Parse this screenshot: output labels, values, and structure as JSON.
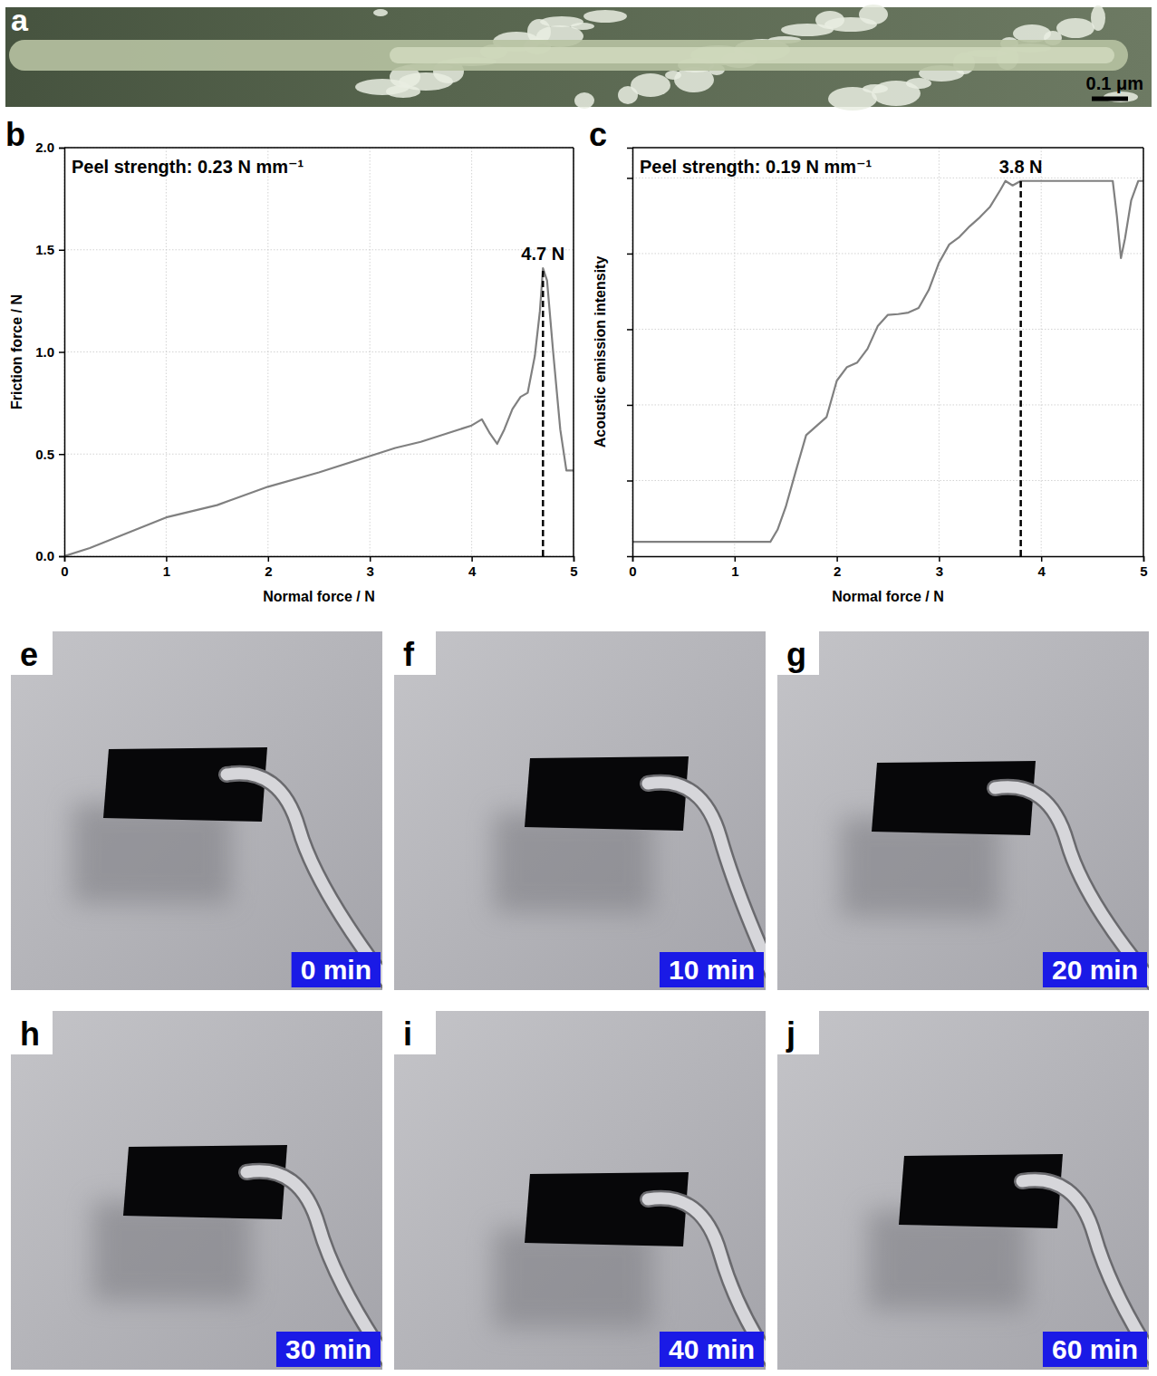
{
  "micrograph": {
    "letter": "a",
    "scale_bar": "0.1 μm"
  },
  "chart_letters": [
    "b",
    "c"
  ],
  "chart_data": [
    {
      "type": "line",
      "x_label": "Normal force / N",
      "y_label": "Friction force / N",
      "annotations": [
        {
          "text": "Peel strength: 0.23 N mm⁻¹"
        },
        {
          "text": "4.7 N",
          "x": 4.7,
          "y": 1.41
        }
      ],
      "x": [
        0,
        0.25,
        0.5,
        0.75,
        1,
        1.5,
        2,
        2.5,
        3,
        3.25,
        3.5,
        3.75,
        4,
        4.1,
        4.18,
        4.25,
        4.32,
        4.4,
        4.48,
        4.55,
        4.62,
        4.67,
        4.7,
        4.74,
        4.8,
        4.87,
        4.93,
        5
      ],
      "series": [
        {
          "color": "#808080",
          "values": [
            0,
            0.04,
            0.09,
            0.14,
            0.19,
            0.25,
            0.34,
            0.41,
            0.49,
            0.53,
            0.56,
            0.6,
            0.64,
            0.67,
            0.6,
            0.55,
            0.62,
            0.72,
            0.78,
            0.8,
            0.98,
            1.2,
            1.41,
            1.35,
            1.0,
            0.62,
            0.42,
            0.42
          ]
        }
      ],
      "xlim": [
        0,
        5
      ],
      "xticks": [
        0,
        1,
        2,
        3,
        4,
        5
      ],
      "ylim": [
        0,
        2
      ],
      "yticks": [
        {
          "value": 0,
          "label": "0.0"
        },
        {
          "value": 0.5,
          "label": "0.5"
        },
        {
          "value": 1,
          "label": "1.0"
        },
        {
          "value": 1.5,
          "label": "1.5"
        },
        {
          "value": 2,
          "label": "2.0"
        }
      ],
      "grid": true
    },
    {
      "type": "line",
      "x_label": "Normal force / N",
      "y_label": "Acoustic emission intensity",
      "annotations": [
        {
          "text": "Peel strength: 0.19 N mm⁻¹"
        },
        {
          "text": "3.8 N",
          "x": 3.8,
          "y": 4.96
        }
      ],
      "x": [
        0,
        0.5,
        1,
        1.35,
        1.42,
        1.5,
        1.6,
        1.7,
        1.8,
        1.9,
        2,
        2.1,
        2.2,
        2.3,
        2.4,
        2.5,
        2.6,
        2.7,
        2.8,
        2.9,
        3,
        3.1,
        3.2,
        3.3,
        3.4,
        3.5,
        3.6,
        3.65,
        3.72,
        3.8,
        4,
        4.3,
        4.6,
        4.7,
        4.74,
        4.78,
        4.82,
        4.88,
        4.95,
        5
      ],
      "series": [
        {
          "color": "#808080",
          "values": [
            0.19,
            0.19,
            0.19,
            0.19,
            0.35,
            0.65,
            1.13,
            1.6,
            1.72,
            1.84,
            2.32,
            2.5,
            2.56,
            2.74,
            3.04,
            3.19,
            3.2,
            3.22,
            3.28,
            3.52,
            3.88,
            4.12,
            4.22,
            4.36,
            4.48,
            4.62,
            4.84,
            4.96,
            4.9,
            4.96,
            4.96,
            4.96,
            4.96,
            4.96,
            4.5,
            3.94,
            4.2,
            4.7,
            4.96,
            4.96
          ]
        }
      ],
      "xlim": [
        0,
        5
      ],
      "xticks": [
        0,
        1,
        2,
        3,
        4,
        5
      ],
      "ylim": [
        0,
        5.4
      ],
      "yticks": [
        1,
        2,
        3,
        4,
        5
      ],
      "tick_labels": "x",
      "grid": true
    }
  ],
  "photos": [
    {
      "letter": "e",
      "time": "0 min"
    },
    {
      "letter": "f",
      "time": "10 min"
    },
    {
      "letter": "g",
      "time": "20 min"
    },
    {
      "letter": "h",
      "time": "30 min"
    },
    {
      "letter": "i",
      "time": "40 min"
    },
    {
      "letter": "j",
      "time": "60 min"
    }
  ]
}
